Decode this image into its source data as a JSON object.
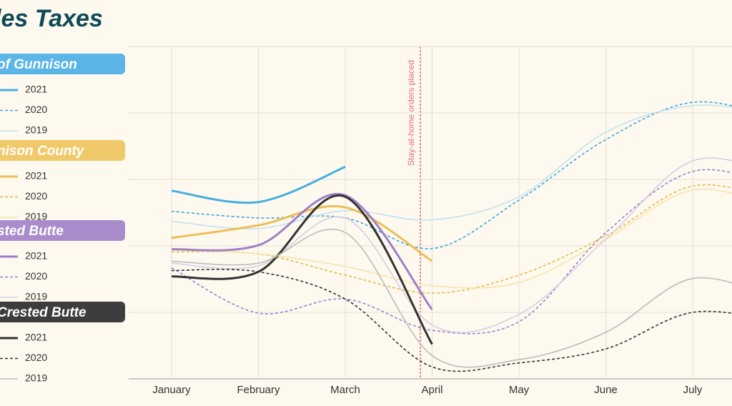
{
  "chart_data": {
    "type": "line",
    "title": "les Taxes",
    "categories": [
      "January",
      "February",
      "March",
      "April",
      "May",
      "June",
      "July",
      null
    ],
    "ylim": [
      0,
      5
    ],
    "yticks": [
      0,
      1,
      2,
      3,
      4,
      5
    ],
    "grid": true,
    "annotation": "Stay-at-home orders placed",
    "groups": [
      {
        "name": "of Gunnison",
        "color": "#5bb5e6",
        "series": [
          {
            "name": "2021",
            "color": "#4aaee0",
            "dashed": false,
            "values": [
              2.83,
              2.66,
              3.19,
              null,
              null,
              null,
              null,
              null
            ]
          },
          {
            "name": "2020",
            "color": "#3fa6dc",
            "dashed": true,
            "values": [
              2.52,
              2.42,
              2.42,
              1.96,
              2.69,
              3.6,
              4.16,
              3.92
            ]
          },
          {
            "name": "2019",
            "color": "#c3e1ee",
            "dashed": false,
            "values": [
              2.37,
              2.26,
              2.53,
              2.39,
              2.74,
              3.71,
              4.11,
              3.98
            ]
          }
        ]
      },
      {
        "name": "nison County",
        "color": "#f0c96a",
        "series": [
          {
            "name": "2021",
            "color": "#ecbf55",
            "dashed": false,
            "values": [
              2.12,
              2.31,
              2.58,
              1.77,
              null,
              null,
              null,
              null
            ]
          },
          {
            "name": "2020",
            "color": "#e9b845",
            "dashed": true,
            "values": [
              1.91,
              1.88,
              1.56,
              1.29,
              1.56,
              2.15,
              2.9,
              2.69
            ]
          },
          {
            "name": "2019",
            "color": "#f7e3a8",
            "dashed": false,
            "values": [
              1.94,
              1.88,
              1.69,
              1.4,
              1.45,
              2.1,
              2.84,
              2.58
            ]
          }
        ]
      },
      {
        "name": "sted Butte",
        "color": "#a98ccb",
        "series": [
          {
            "name": "2021",
            "color": "#9f80c8",
            "dashed": false,
            "values": [
              1.95,
              2.01,
              2.76,
              1.04,
              null,
              null,
              null,
              null
            ]
          },
          {
            "name": "2020",
            "color": "#9b7fcb",
            "dashed": true,
            "values": [
              1.67,
              0.99,
              1.2,
              0.73,
              0.86,
              2.2,
              3.12,
              2.9
            ]
          },
          {
            "name": "2019",
            "color": "#d8cde4",
            "dashed": false,
            "values": [
              1.74,
              1.7,
              2.42,
              0.81,
              0.97,
              2.1,
              3.28,
              3.06
            ]
          }
        ]
      },
      {
        "name": "Crested Butte",
        "color": "#3d3d3d",
        "series": [
          {
            "name": "2021",
            "color": "#333333",
            "dashed": false,
            "values": [
              1.54,
              1.61,
              2.74,
              0.52,
              null,
              null,
              null,
              null
            ]
          },
          {
            "name": "2020",
            "color": "#333333",
            "dashed": true,
            "values": [
              1.63,
              1.61,
              1.2,
              0.18,
              0.24,
              0.45,
              1.0,
              0.86
            ]
          },
          {
            "name": "2019",
            "color": "#bbbbbb",
            "dashed": false,
            "values": [
              1.77,
              1.74,
              2.2,
              0.35,
              0.29,
              0.7,
              1.51,
              1.18
            ]
          }
        ]
      }
    ]
  }
}
